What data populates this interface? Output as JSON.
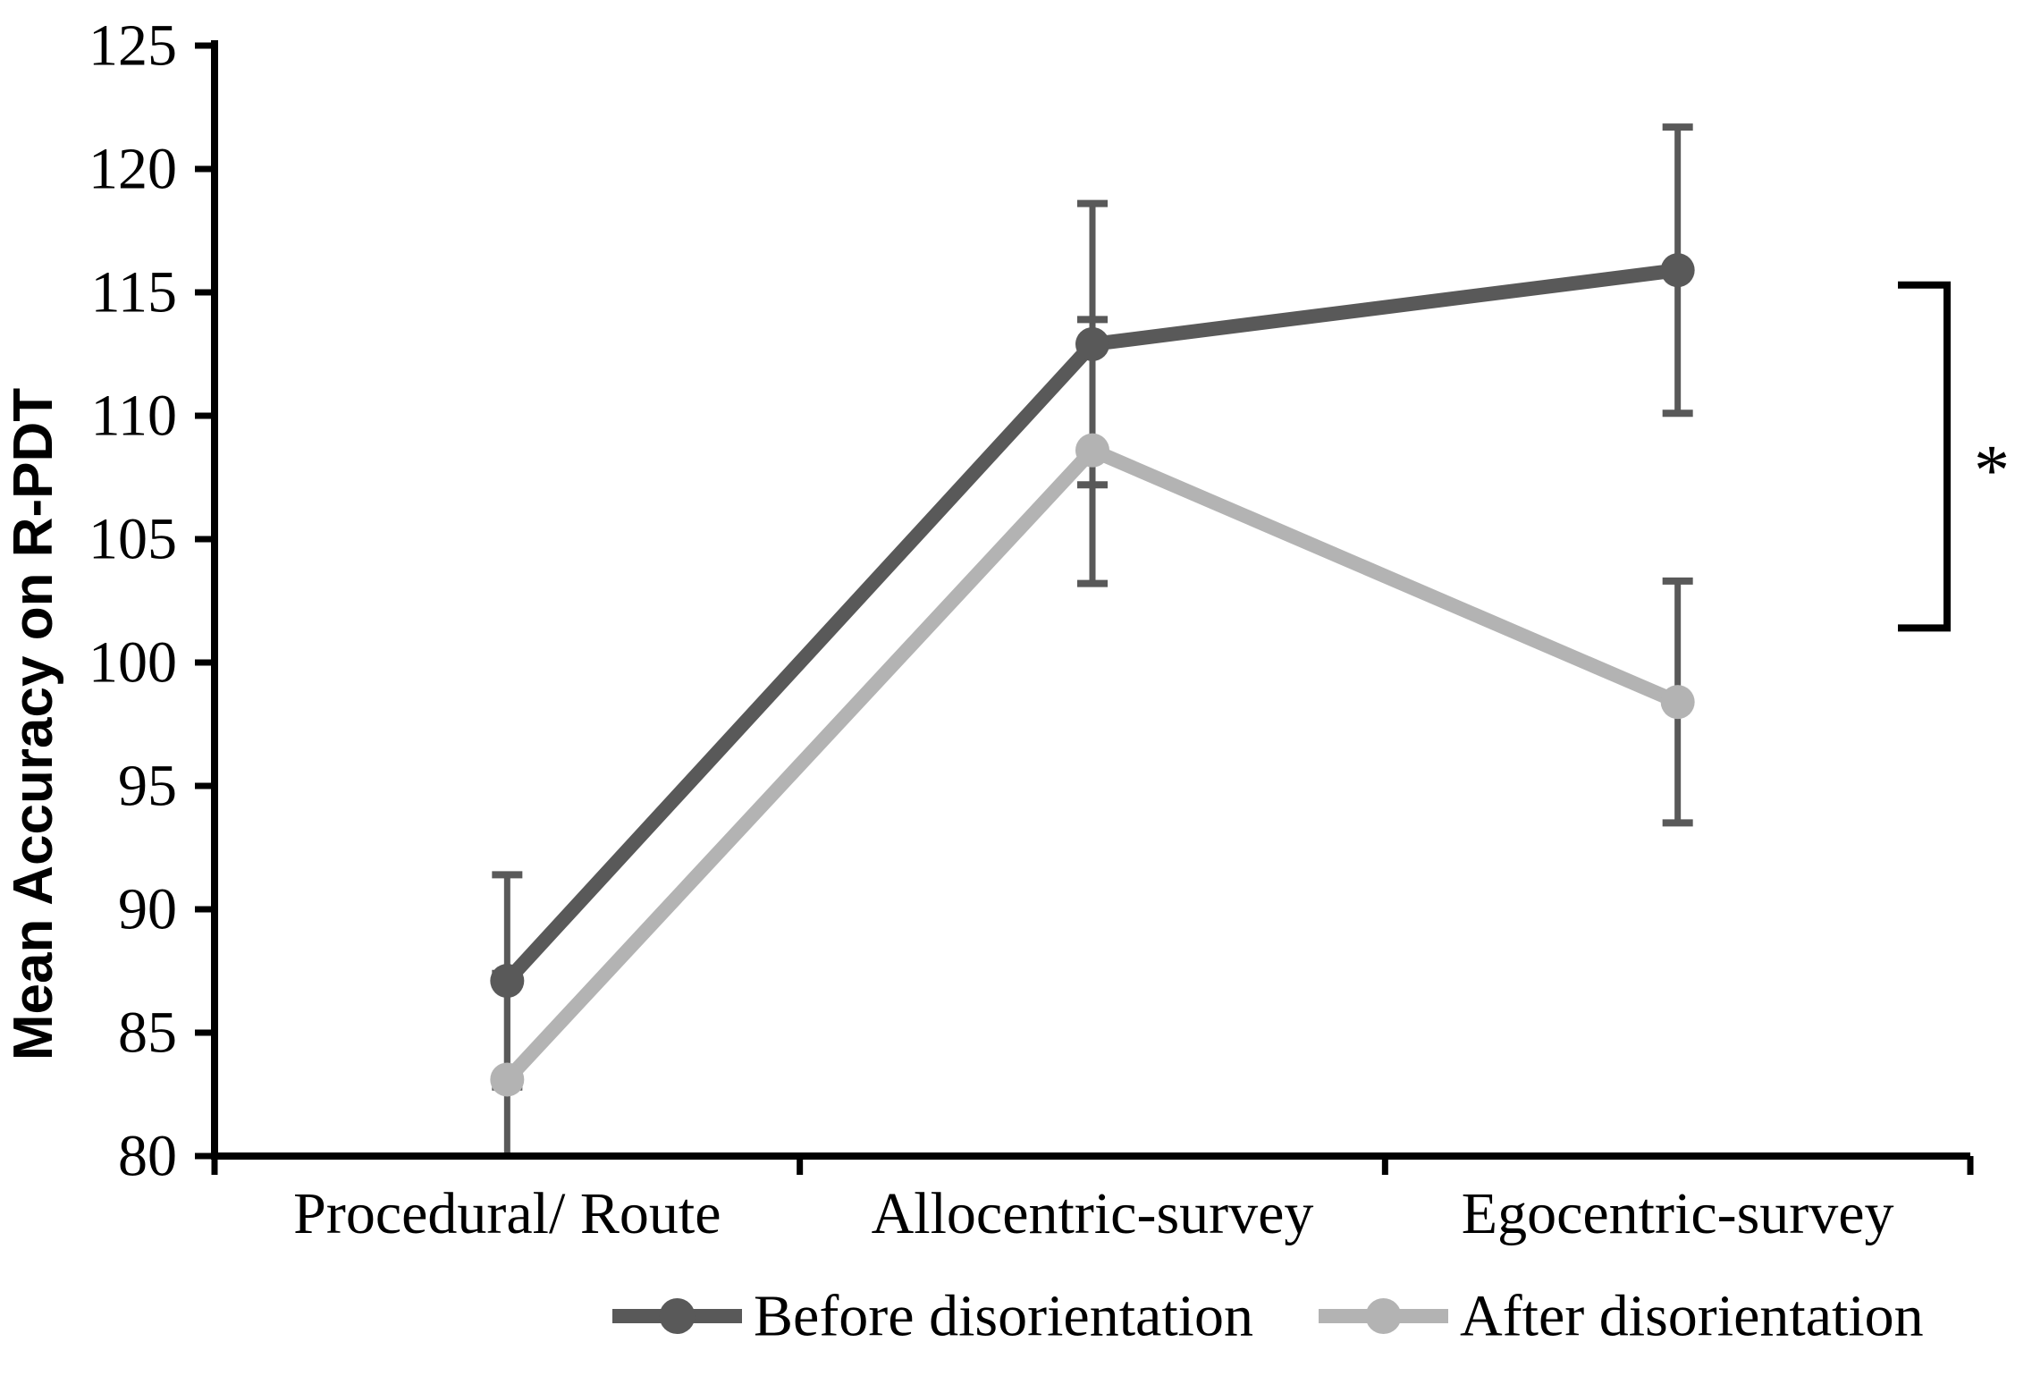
{
  "chart_data": {
    "type": "line",
    "title": "",
    "xlabel": "",
    "ylabel": "Mean Accuracy on R-PDT",
    "ylim": [
      80,
      125
    ],
    "ytick_step": 5,
    "yticks": [
      80,
      85,
      90,
      95,
      100,
      105,
      110,
      115,
      120,
      125
    ],
    "grid": false,
    "legend_position": "bottom",
    "axis_color": "#000000",
    "error_bar_color": "#595959",
    "categories": [
      "Procedural/ Route",
      "Allocentric-survey",
      "Egocentric-survey"
    ],
    "series": [
      {
        "name": "Before disorientation",
        "color": "#595959",
        "values": [
          87.1,
          112.9,
          115.9
        ],
        "error_upper": [
          91.4,
          118.6,
          121.7
        ],
        "error_lower": [
          82.8,
          107.2,
          110.1
        ]
      },
      {
        "name": "After disorientation",
        "color": "#b3b3b3",
        "values": [
          83.1,
          108.6,
          98.4
        ],
        "error_upper": [
          87.4,
          113.9,
          103.3
        ],
        "error_lower": [
          78.8,
          103.2,
          93.5
        ]
      }
    ],
    "annotation": {
      "type": "significance-bracket",
      "label": "*",
      "side": "right",
      "y_top": 115.3,
      "y_bottom": 101.4
    }
  }
}
